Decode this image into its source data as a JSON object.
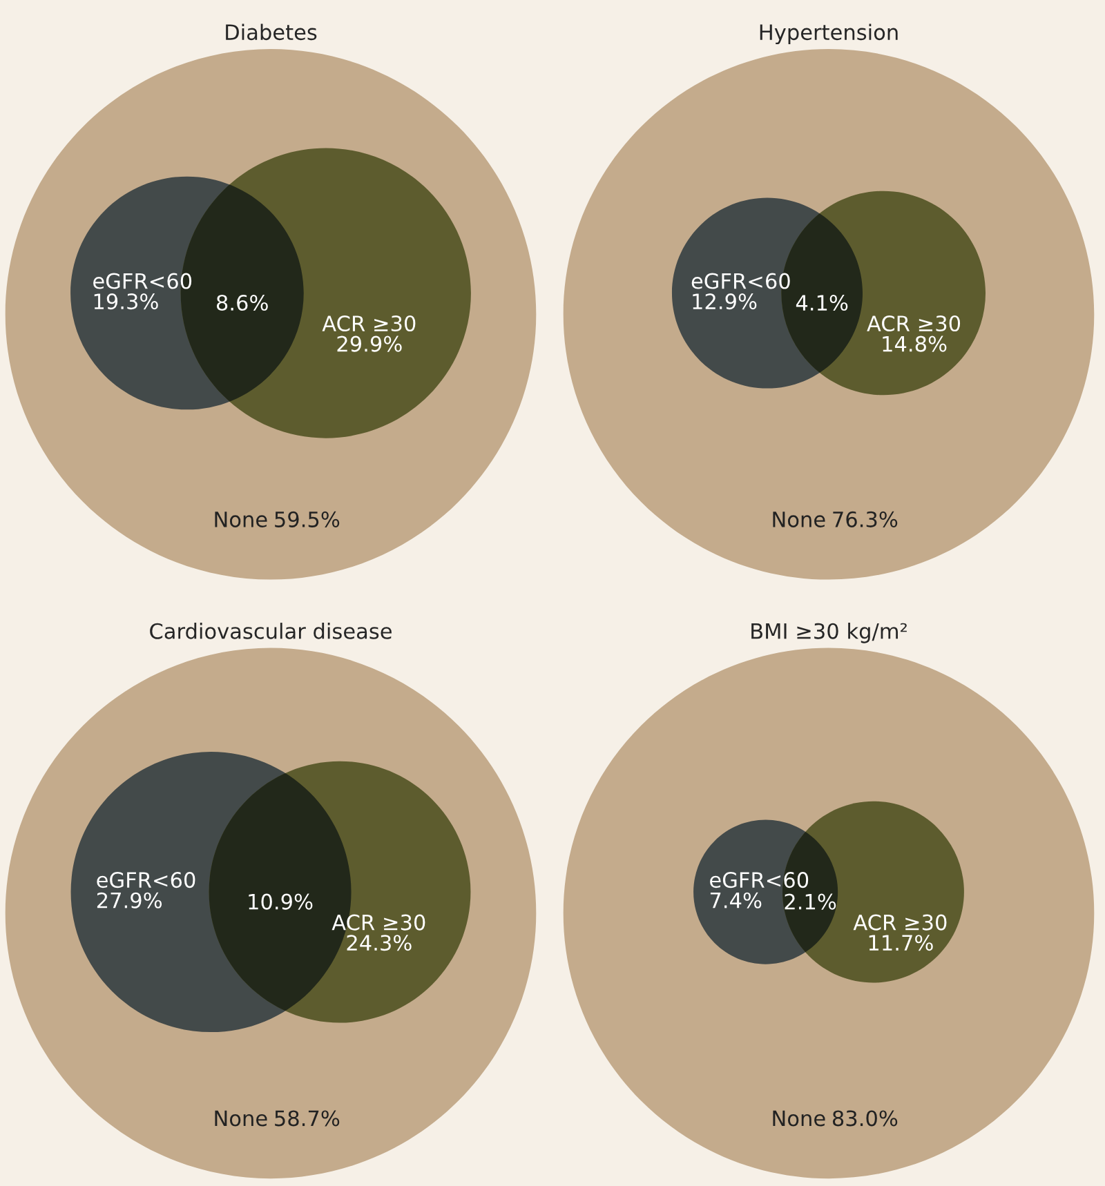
{
  "chart_data": [
    {
      "type": "other",
      "title": "Diabetes",
      "categories": [
        "eGFR<60",
        null,
        "ACR ≥30",
        "None"
      ],
      "values": [
        19.3,
        8.6,
        29.9,
        59.5
      ],
      "value_labels": [
        "19.3%",
        "8.6%",
        "29.9%",
        "59.5%"
      ],
      "colors": [
        "#434a4a",
        "#22281a",
        "#5d5c2e",
        "#c4ab8c"
      ]
    },
    {
      "type": "other",
      "title": "Hypertension",
      "categories": [
        "eGFR<60",
        null,
        "ACR ≥30",
        "None"
      ],
      "values": [
        12.9,
        4.1,
        14.8,
        76.3
      ],
      "value_labels": [
        "12.9%",
        "4.1%",
        "14.8%",
        "76.3%"
      ],
      "colors": [
        "#434a4a",
        "#22281a",
        "#5d5c2e",
        "#c4ab8c"
      ]
    },
    {
      "type": "other",
      "title": "Cardiovascular disease",
      "categories": [
        "eGFR<60",
        null,
        "ACR ≥30",
        "None"
      ],
      "values": [
        27.9,
        10.9,
        24.3,
        58.7
      ],
      "value_labels": [
        "27.9%",
        "10.9%",
        "24.3%",
        "58.7%"
      ],
      "colors": [
        "#434a4a",
        "#22281a",
        "#5d5c2e",
        "#c4ab8c"
      ]
    },
    {
      "type": "other",
      "title": "BMI ≥30 kg/m²",
      "categories": [
        "eGFR<60",
        null,
        "ACR ≥30",
        "None"
      ],
      "values": [
        7.4,
        2.1,
        11.7,
        83.0
      ],
      "value_labels": [
        "7.4%",
        "2.1%",
        "11.7%",
        "83.0%"
      ],
      "colors": [
        "#434a4a",
        "#22281a",
        "#5d5c2e",
        "#c4ab8c"
      ]
    }
  ]
}
